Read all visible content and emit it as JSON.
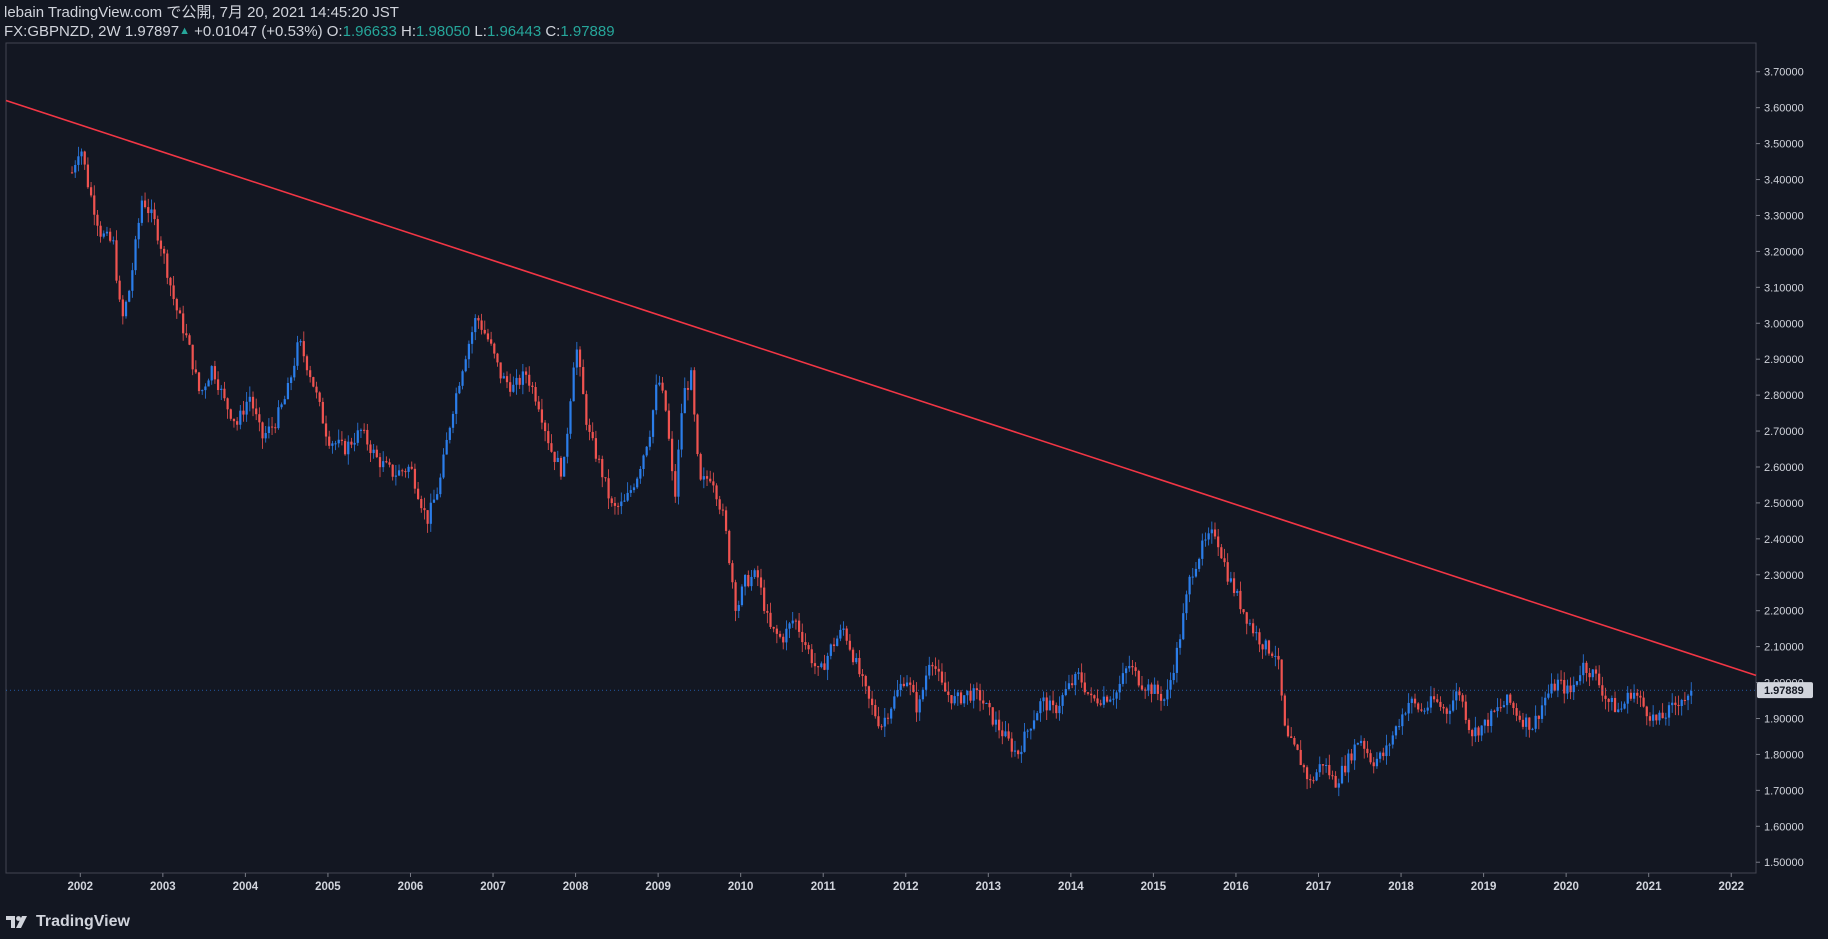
{
  "header": {
    "line1": "lebain TradingView.com で公開, 7月 20, 2021 14:45:20 JST",
    "symbol": "FX:GBPNZD, 2W",
    "last": "1.97897",
    "change": "+0.01047 (+0.53%)",
    "o_label": "O:",
    "o": "1.96633",
    "h_label": "H:",
    "h": "1.98050",
    "l_label": "L:",
    "l": "1.96443",
    "c_label": "C:",
    "c": "1.97889"
  },
  "footer": {
    "brand": "TradingView"
  },
  "colors": {
    "bg": "#131722",
    "up": "#2b7de9",
    "down": "#ef5350",
    "trend": "#f23645",
    "text": "#d1d4dc",
    "axis": "#434651"
  },
  "chart_data": {
    "type": "candlestick",
    "symbol": "GBPNZD",
    "timeframe": "2W",
    "ylim": [
      1.47,
      3.78
    ],
    "xlim": [
      2001.1,
      2022.3
    ],
    "y_ticks": [
      "1.50000",
      "1.60000",
      "1.70000",
      "1.80000",
      "1.90000",
      "2.00000",
      "2.10000",
      "2.20000",
      "2.30000",
      "2.40000",
      "2.50000",
      "2.60000",
      "2.70000",
      "2.80000",
      "2.90000",
      "3.00000",
      "3.10000",
      "3.20000",
      "3.30000",
      "3.40000",
      "3.50000",
      "3.60000",
      "3.70000"
    ],
    "x_ticks": [
      "2002",
      "2003",
      "2004",
      "2005",
      "2006",
      "2007",
      "2008",
      "2009",
      "2010",
      "2011",
      "2012",
      "2013",
      "2014",
      "2015",
      "2016",
      "2017",
      "2018",
      "2019",
      "2020",
      "2021",
      "2022"
    ],
    "current_price_label": "1.97889",
    "current_price": 1.97889,
    "trendline": {
      "from": [
        2001.1,
        3.62
      ],
      "to": [
        2022.3,
        2.02
      ]
    },
    "close_path": [
      [
        2001.9,
        3.42
      ],
      [
        2002.0,
        3.5
      ],
      [
        2002.1,
        3.38
      ],
      [
        2002.25,
        3.25
      ],
      [
        2002.4,
        3.22
      ],
      [
        2002.5,
        3.0
      ],
      [
        2002.6,
        3.1
      ],
      [
        2002.75,
        3.35
      ],
      [
        2002.9,
        3.28
      ],
      [
        2003.0,
        3.2
      ],
      [
        2003.15,
        3.05
      ],
      [
        2003.3,
        2.95
      ],
      [
        2003.45,
        2.8
      ],
      [
        2003.6,
        2.88
      ],
      [
        2003.75,
        2.78
      ],
      [
        2003.9,
        2.72
      ],
      [
        2004.05,
        2.8
      ],
      [
        2004.2,
        2.68
      ],
      [
        2004.35,
        2.72
      ],
      [
        2004.5,
        2.8
      ],
      [
        2004.65,
        2.95
      ],
      [
        2004.8,
        2.85
      ],
      [
        2005.0,
        2.68
      ],
      [
        2005.2,
        2.65
      ],
      [
        2005.4,
        2.7
      ],
      [
        2005.6,
        2.62
      ],
      [
        2005.8,
        2.58
      ],
      [
        2006.0,
        2.6
      ],
      [
        2006.2,
        2.45
      ],
      [
        2006.35,
        2.55
      ],
      [
        2006.5,
        2.75
      ],
      [
        2006.65,
        2.9
      ],
      [
        2006.8,
        3.02
      ],
      [
        2006.95,
        2.95
      ],
      [
        2007.1,
        2.85
      ],
      [
        2007.25,
        2.82
      ],
      [
        2007.4,
        2.86
      ],
      [
        2007.55,
        2.78
      ],
      [
        2007.7,
        2.65
      ],
      [
        2007.85,
        2.58
      ],
      [
        2008.0,
        2.95
      ],
      [
        2008.15,
        2.7
      ],
      [
        2008.3,
        2.6
      ],
      [
        2008.45,
        2.48
      ],
      [
        2008.6,
        2.5
      ],
      [
        2008.75,
        2.58
      ],
      [
        2008.9,
        2.7
      ],
      [
        2009.0,
        2.85
      ],
      [
        2009.1,
        2.75
      ],
      [
        2009.2,
        2.5
      ],
      [
        2009.3,
        2.8
      ],
      [
        2009.4,
        2.85
      ],
      [
        2009.5,
        2.55
      ],
      [
        2009.65,
        2.58
      ],
      [
        2009.8,
        2.45
      ],
      [
        2009.95,
        2.2
      ],
      [
        2010.05,
        2.28
      ],
      [
        2010.2,
        2.3
      ],
      [
        2010.35,
        2.15
      ],
      [
        2010.5,
        2.12
      ],
      [
        2010.65,
        2.18
      ],
      [
        2010.8,
        2.1
      ],
      [
        2010.95,
        2.02
      ],
      [
        2011.1,
        2.1
      ],
      [
        2011.25,
        2.15
      ],
      [
        2011.4,
        2.05
      ],
      [
        2011.55,
        1.95
      ],
      [
        2011.7,
        1.88
      ],
      [
        2011.85,
        1.95
      ],
      [
        2012.0,
        2.02
      ],
      [
        2012.15,
        1.92
      ],
      [
        2012.3,
        2.08
      ],
      [
        2012.45,
        1.98
      ],
      [
        2012.6,
        1.95
      ],
      [
        2012.75,
        1.97
      ],
      [
        2012.9,
        1.96
      ],
      [
        2013.05,
        1.9
      ],
      [
        2013.2,
        1.85
      ],
      [
        2013.35,
        1.8
      ],
      [
        2013.5,
        1.88
      ],
      [
        2013.65,
        1.95
      ],
      [
        2013.8,
        1.92
      ],
      [
        2013.95,
        1.98
      ],
      [
        2014.1,
        2.02
      ],
      [
        2014.25,
        1.95
      ],
      [
        2014.4,
        1.96
      ],
      [
        2014.55,
        1.97
      ],
      [
        2014.7,
        2.05
      ],
      [
        2014.85,
        2.0
      ],
      [
        2015.0,
        1.98
      ],
      [
        2015.15,
        1.95
      ],
      [
        2015.3,
        2.1
      ],
      [
        2015.45,
        2.3
      ],
      [
        2015.6,
        2.38
      ],
      [
        2015.75,
        2.42
      ],
      [
        2015.9,
        2.3
      ],
      [
        2016.05,
        2.22
      ],
      [
        2016.2,
        2.15
      ],
      [
        2016.35,
        2.1
      ],
      [
        2016.5,
        2.08
      ],
      [
        2016.6,
        1.85
      ],
      [
        2016.75,
        1.8
      ],
      [
        2016.9,
        1.72
      ],
      [
        2017.05,
        1.78
      ],
      [
        2017.2,
        1.72
      ],
      [
        2017.35,
        1.78
      ],
      [
        2017.5,
        1.85
      ],
      [
        2017.65,
        1.78
      ],
      [
        2017.8,
        1.8
      ],
      [
        2017.95,
        1.88
      ],
      [
        2018.1,
        1.95
      ],
      [
        2018.25,
        1.92
      ],
      [
        2018.4,
        1.95
      ],
      [
        2018.55,
        1.92
      ],
      [
        2018.7,
        1.98
      ],
      [
        2018.85,
        1.86
      ],
      [
        2019.0,
        1.88
      ],
      [
        2019.15,
        1.92
      ],
      [
        2019.3,
        1.95
      ],
      [
        2019.45,
        1.9
      ],
      [
        2019.6,
        1.88
      ],
      [
        2019.75,
        1.96
      ],
      [
        2019.9,
        2.0
      ],
      [
        2020.05,
        1.97
      ],
      [
        2020.2,
        2.05
      ],
      [
        2020.35,
        2.02
      ],
      [
        2020.5,
        1.95
      ],
      [
        2020.65,
        1.92
      ],
      [
        2020.8,
        1.98
      ],
      [
        2020.95,
        1.93
      ],
      [
        2021.1,
        1.89
      ],
      [
        2021.25,
        1.92
      ],
      [
        2021.4,
        1.96
      ],
      [
        2021.5,
        1.95
      ],
      [
        2021.55,
        1.98
      ]
    ]
  }
}
